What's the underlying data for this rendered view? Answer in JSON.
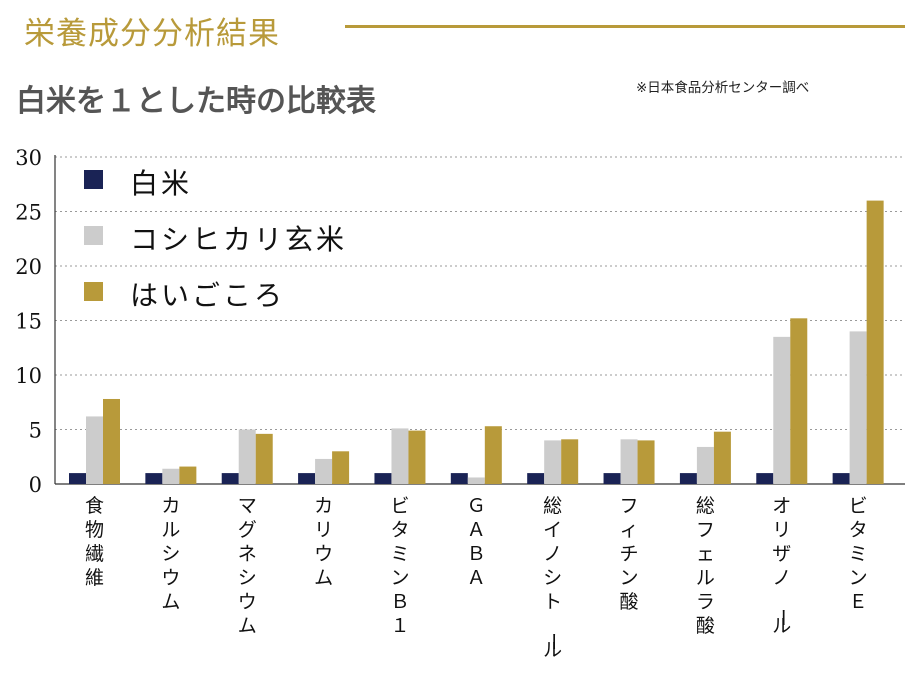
{
  "header": {
    "title": "栄養成分分析結果",
    "subtitle": "白米を１とした時の比較表",
    "source_note": "※日本食品分析センター調べ"
  },
  "colors": {
    "accent": "#b89a3a",
    "series_white_rice": "#1a2355",
    "series_koshihikari": "#cccccc",
    "series_haigokoro": "#b89a3a"
  },
  "chart_data": {
    "type": "bar",
    "title": "白米を１とした時の比較表",
    "categories": [
      "食物繊維",
      "カルシウム",
      "マグネシウム",
      "カリウム",
      "ビタミンＢ１",
      "ＧＡＢＡ",
      "総イノシトール",
      "フィチン酸",
      "総フェルラ酸",
      "オリザノール",
      "ビタミンＥ"
    ],
    "series": [
      {
        "name": "白米",
        "values": [
          1,
          1,
          1,
          1,
          1,
          1,
          1,
          1,
          1,
          1,
          1
        ]
      },
      {
        "name": "コシヒカリ玄米",
        "values": [
          6.2,
          1.4,
          5.0,
          2.3,
          5.1,
          0.6,
          4.0,
          4.1,
          3.4,
          13.5,
          14.0
        ]
      },
      {
        "name": "はいごころ",
        "values": [
          7.8,
          1.6,
          4.6,
          3.0,
          4.9,
          5.3,
          4.1,
          4.0,
          4.8,
          15.2,
          26.0
        ]
      }
    ],
    "yticks": [
      "0",
      "5",
      "10",
      "15",
      "20",
      "25",
      "30"
    ],
    "ylim": [
      0,
      30
    ],
    "grid": true,
    "legend_position": "top-left"
  }
}
